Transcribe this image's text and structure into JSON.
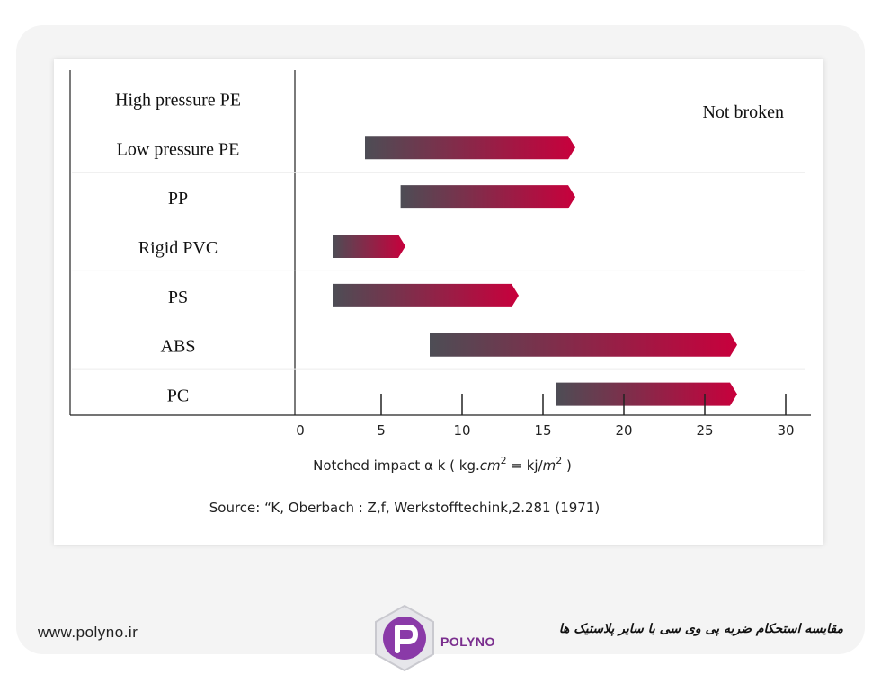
{
  "brand": {
    "url": "www.polyno.ir",
    "name": "POLYNO",
    "caption_fa": "مقایسه استحکام ضربه پی وی سی با سایر پلاستیک ها",
    "accent_color": "#7a2e8e"
  },
  "chart_data": {
    "type": "bar",
    "orientation": "horizontal-range",
    "categories": [
      "High pressure PE",
      "Low pressure PE",
      "PP",
      "Rigid PVC",
      "PS",
      "ABS",
      "PC"
    ],
    "ranges": [
      null,
      [
        4,
        17
      ],
      [
        6.2,
        17
      ],
      [
        2,
        6.5
      ],
      [
        2,
        13.5
      ],
      [
        8,
        27
      ],
      [
        15.8,
        27
      ]
    ],
    "annotation": "Not broken",
    "xticks": [
      0,
      5,
      10,
      15,
      20,
      25,
      30
    ],
    "xlim": [
      0,
      30
    ],
    "xlabel": "Notched impact  α k ( kg.cm² = kj/m² )",
    "source": "Source: “K, Oberbach : Z,f, Werkstofftechink,2.281 (1971)",
    "colors": {
      "start": "#4d4d55",
      "end": "#c8003c"
    }
  }
}
